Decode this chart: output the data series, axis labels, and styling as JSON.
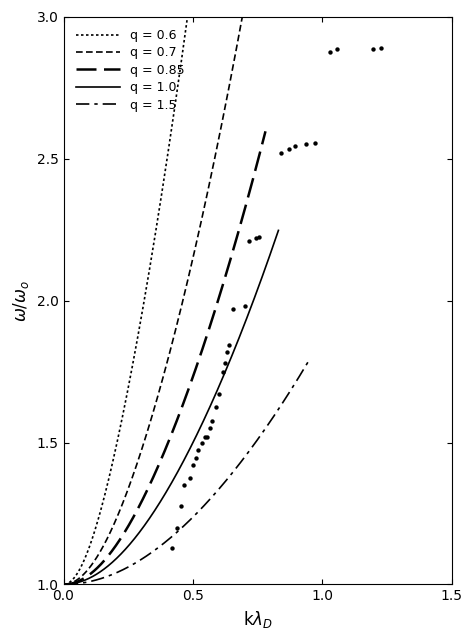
{
  "title": "",
  "xlabel": "kλ_D",
  "ylabel": "ω/ω_o",
  "xlim": [
    0,
    1.5
  ],
  "ylim": [
    1,
    3
  ],
  "yticks": [
    1,
    1.5,
    2,
    2.5,
    3
  ],
  "xticks": [
    0,
    0.5,
    1.0,
    1.5
  ],
  "scatter_points": [
    [
      0.42,
      1.13
    ],
    [
      0.44,
      1.2
    ],
    [
      0.455,
      1.275
    ],
    [
      0.465,
      1.35
    ],
    [
      0.49,
      1.375
    ],
    [
      0.5,
      1.42
    ],
    [
      0.51,
      1.445
    ],
    [
      0.52,
      1.475
    ],
    [
      0.535,
      1.5
    ],
    [
      0.545,
      1.52
    ],
    [
      0.555,
      1.52
    ],
    [
      0.565,
      1.55
    ],
    [
      0.575,
      1.575
    ],
    [
      0.59,
      1.625
    ],
    [
      0.6,
      1.67
    ],
    [
      0.615,
      1.75
    ],
    [
      0.625,
      1.78
    ],
    [
      0.63,
      1.82
    ],
    [
      0.64,
      1.845
    ],
    [
      0.655,
      1.97
    ],
    [
      0.7,
      1.98
    ],
    [
      0.715,
      2.21
    ],
    [
      0.745,
      2.22
    ],
    [
      0.755,
      2.225
    ],
    [
      0.84,
      2.52
    ],
    [
      0.87,
      2.535
    ],
    [
      0.895,
      2.545
    ],
    [
      0.935,
      2.55
    ],
    [
      0.97,
      2.555
    ],
    [
      1.03,
      2.875
    ],
    [
      1.055,
      2.885
    ],
    [
      1.195,
      2.885
    ],
    [
      1.225,
      2.89
    ]
  ],
  "curves": [
    {
      "q": 0.6,
      "alpha": 28.0,
      "beta": 30.0,
      "kmax": 0.58,
      "lw": 1.2
    },
    {
      "q": 0.7,
      "alpha": 12.0,
      "beta": 10.0,
      "kmax": 0.73,
      "lw": 1.2
    },
    {
      "q": 0.85,
      "alpha": 7.0,
      "beta": 4.0,
      "kmax": 0.78,
      "lw": 1.8
    },
    {
      "q": 1.0,
      "alpha": 4.5,
      "beta": 2.0,
      "kmax": 0.83,
      "lw": 1.2
    },
    {
      "q": 1.5,
      "alpha": 2.0,
      "beta": 0.5,
      "kmax": 0.95,
      "lw": 1.2
    }
  ],
  "background_color": "#ffffff",
  "line_color": "#000000"
}
